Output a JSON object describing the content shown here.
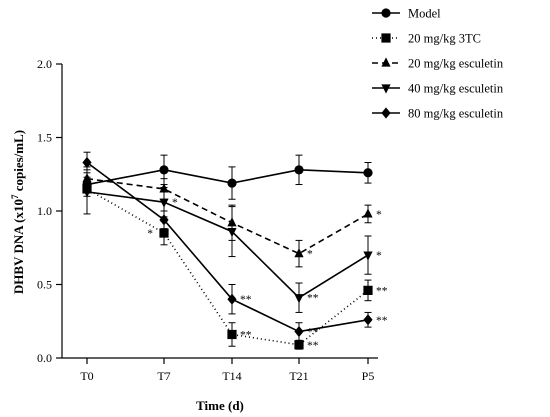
{
  "chart_data": {
    "type": "line",
    "categories": [
      "T0",
      "T7",
      "T14",
      "T21",
      "P5"
    ],
    "xlabel": "Time (d)",
    "ylabel_prefix": "DHBV DNA (x10",
    "ylabel_sup": "7",
    "ylabel_suffix": " copies/mL)",
    "ylim": [
      0,
      2.0
    ],
    "yticks": [
      "0.0",
      "0.5",
      "1.0",
      "1.5",
      "2.0"
    ],
    "legend_position": "top-right",
    "series": [
      {
        "name": "Model",
        "marker": "circle",
        "dash": "solid",
        "values": [
          1.18,
          1.28,
          1.19,
          1.28,
          1.26
        ],
        "errors": [
          0.05,
          0.1,
          0.11,
          0.1,
          0.07
        ],
        "sig": [
          "",
          "",
          "",
          "",
          ""
        ]
      },
      {
        "name": "20 mg/kg 3TC",
        "marker": "square",
        "dash": "dashdot",
        "values": [
          1.15,
          0.85,
          0.16,
          0.09,
          0.46
        ],
        "errors": [
          0.05,
          0.08,
          0.08,
          0.03,
          0.07
        ],
        "sig": [
          "",
          "*",
          "**",
          "**",
          "**"
        ]
      },
      {
        "name": "20 mg/kg esculetin",
        "marker": "triangle-up",
        "dash": "dashed",
        "values": [
          1.22,
          1.15,
          0.92,
          0.71,
          0.98
        ],
        "errors": [
          0.08,
          0.07,
          0.12,
          0.09,
          0.06
        ],
        "sig": [
          "",
          "",
          "",
          "*",
          "*"
        ]
      },
      {
        "name": "40 mg/kg esculetin",
        "marker": "triangle-down",
        "dash": "solid",
        "values": [
          1.13,
          1.06,
          0.86,
          0.41,
          0.7
        ],
        "errors": [
          0.15,
          0.1,
          0.17,
          0.1,
          0.13
        ],
        "sig": [
          "",
          "*",
          "",
          "**",
          "*"
        ]
      },
      {
        "name": "80 mg/kg  esculetin",
        "marker": "diamond",
        "dash": "solid",
        "values": [
          1.33,
          0.94,
          0.4,
          0.18,
          0.26
        ],
        "errors": [
          0.07,
          0.06,
          0.1,
          0.06,
          0.05
        ],
        "sig": [
          "",
          "",
          "**",
          "**",
          "**"
        ]
      }
    ]
  }
}
